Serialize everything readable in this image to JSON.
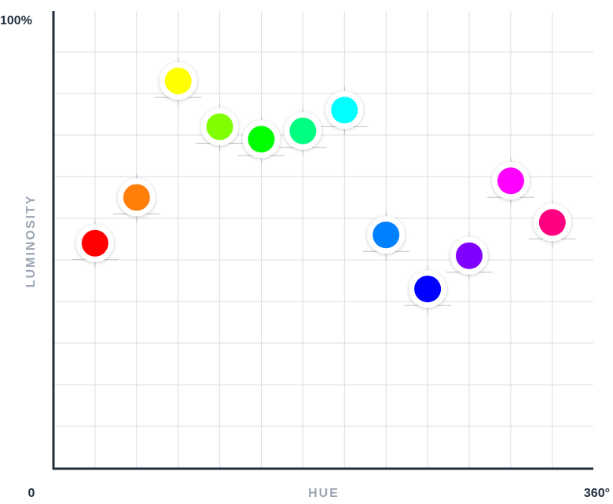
{
  "chart_data": {
    "type": "scatter",
    "xlabel": "HUE",
    "ylabel": "LUMINOSITY",
    "x_tick_labels": {
      "min": "0",
      "max": "360°"
    },
    "y_tick_labels": {
      "max": "100%"
    },
    "xlim": [
      0,
      360
    ],
    "ylim": [
      0,
      100
    ],
    "grid": true,
    "points": [
      {
        "x": 30,
        "y": 54,
        "color": "#ff0000"
      },
      {
        "x": 60,
        "y": 65,
        "color": "#ff7f0a"
      },
      {
        "x": 90,
        "y": 93,
        "color": "#ffff00"
      },
      {
        "x": 120,
        "y": 82,
        "color": "#7fff00"
      },
      {
        "x": 150,
        "y": 79,
        "color": "#00ff00"
      },
      {
        "x": 180,
        "y": 81,
        "color": "#00ff80"
      },
      {
        "x": 210,
        "y": 86,
        "color": "#00ffff"
      },
      {
        "x": 240,
        "y": 56,
        "color": "#0080ff"
      },
      {
        "x": 270,
        "y": 43,
        "color": "#0000ff"
      },
      {
        "x": 300,
        "y": 51,
        "color": "#8000ff"
      },
      {
        "x": 330,
        "y": 69,
        "color": "#ff00ff"
      },
      {
        "x": 360,
        "y": 59,
        "color": "#ff0080"
      }
    ]
  },
  "colors": {
    "axis": "#1f2d3d",
    "grid": "#d8dde3",
    "axis_title": "#9aa5b1"
  }
}
